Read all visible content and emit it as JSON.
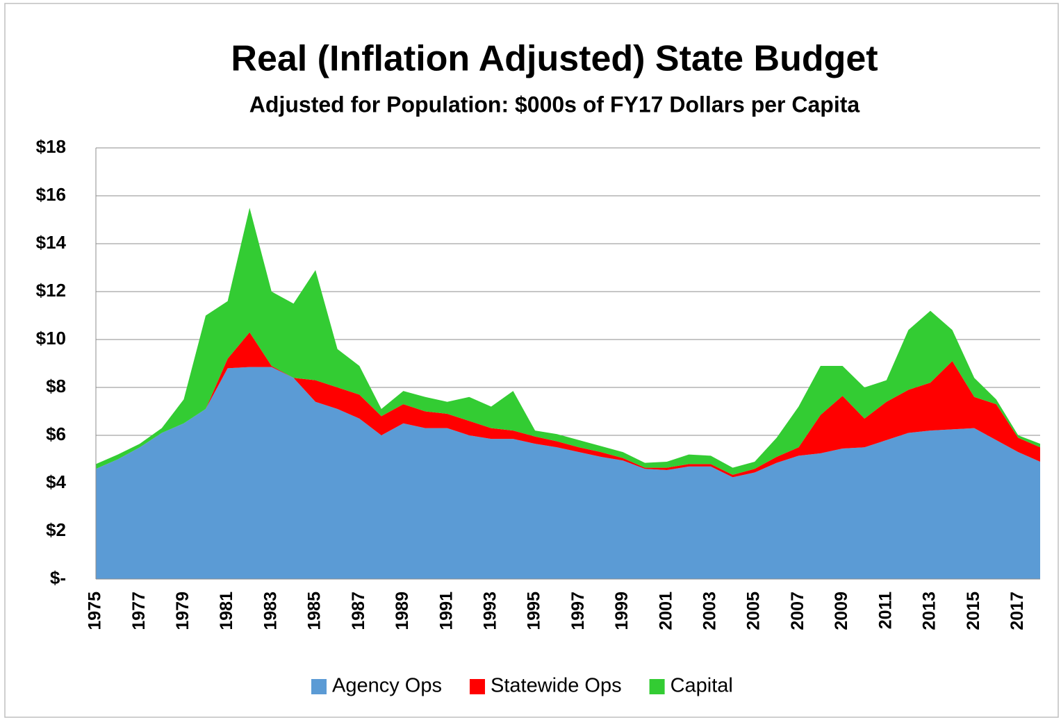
{
  "chart_data": {
    "type": "stacked_area",
    "title": "Real (Inflation Adjusted) State Budget",
    "subtitle": "Adjusted for Population:  $000s of FY17 Dollars per Capita",
    "categories": [
      "1975",
      null,
      "1977",
      null,
      "1979",
      null,
      "1981",
      null,
      "1983",
      null,
      "1985",
      null,
      "1987",
      null,
      "1989",
      null,
      "1991",
      null,
      "1993",
      null,
      "1995",
      null,
      "1997",
      null,
      "1999",
      null,
      "2001",
      null,
      "2003",
      null,
      "2005",
      null,
      "2007",
      null,
      "2009",
      null,
      "2011",
      null,
      "2013",
      null,
      "2015",
      null,
      "2017",
      null
    ],
    "series": [
      {
        "name": "Agency Ops",
        "color": "#5b9bd5",
        "values": [
          4.6,
          5.0,
          5.5,
          6.1,
          6.5,
          7.1,
          8.8,
          8.85,
          8.85,
          8.4,
          7.4,
          7.1,
          6.7,
          6.0,
          6.5,
          6.3,
          6.3,
          6.0,
          5.85,
          5.85,
          5.65,
          5.5,
          5.3,
          5.1,
          4.95,
          4.6,
          4.55,
          4.7,
          4.7,
          4.25,
          4.45,
          4.85,
          5.15,
          5.25,
          5.45,
          5.5,
          5.8,
          6.1,
          6.2,
          6.25,
          6.3,
          5.8,
          5.3,
          4.9
        ]
      },
      {
        "name": "Statewide Ops",
        "color": "#ff0000",
        "values": [
          0,
          0,
          0,
          0,
          0,
          0,
          0.4,
          1.45,
          0.05,
          0,
          0.9,
          0.9,
          1.0,
          0.8,
          0.8,
          0.7,
          0.6,
          0.6,
          0.45,
          0.35,
          0.3,
          0.25,
          0.2,
          0.2,
          0.1,
          0.05,
          0.1,
          0.1,
          0.1,
          0.1,
          0.15,
          0.25,
          0.35,
          1.6,
          2.2,
          1.2,
          1.6,
          1.8,
          2.0,
          2.85,
          1.3,
          1.5,
          0.6,
          0.6
        ]
      },
      {
        "name": "Capital",
        "color": "#33cc33",
        "values": [
          0.2,
          0.2,
          0.15,
          0.2,
          1.0,
          3.9,
          2.4,
          5.2,
          3.1,
          3.1,
          4.6,
          1.6,
          1.2,
          0.3,
          0.55,
          0.6,
          0.5,
          1.0,
          0.9,
          1.65,
          0.25,
          0.3,
          0.3,
          0.25,
          0.25,
          0.2,
          0.25,
          0.4,
          0.35,
          0.3,
          0.3,
          0.8,
          1.7,
          2.05,
          1.25,
          1.3,
          0.9,
          2.5,
          3.0,
          1.3,
          0.8,
          0.2,
          0.1,
          0.15
        ]
      }
    ],
    "ylim": [
      0,
      18
    ],
    "yticks": [
      {
        "value": 0,
        "label": "$-"
      },
      {
        "value": 2,
        "label": "$2"
      },
      {
        "value": 4,
        "label": "$4"
      },
      {
        "value": 6,
        "label": "$6"
      },
      {
        "value": 8,
        "label": "$8"
      },
      {
        "value": 10,
        "label": "$10"
      },
      {
        "value": 12,
        "label": "$12"
      },
      {
        "value": 14,
        "label": "$14"
      },
      {
        "value": 16,
        "label": "$16"
      },
      {
        "value": 18,
        "label": "$18"
      }
    ],
    "grid": true,
    "legend": "bottom"
  }
}
